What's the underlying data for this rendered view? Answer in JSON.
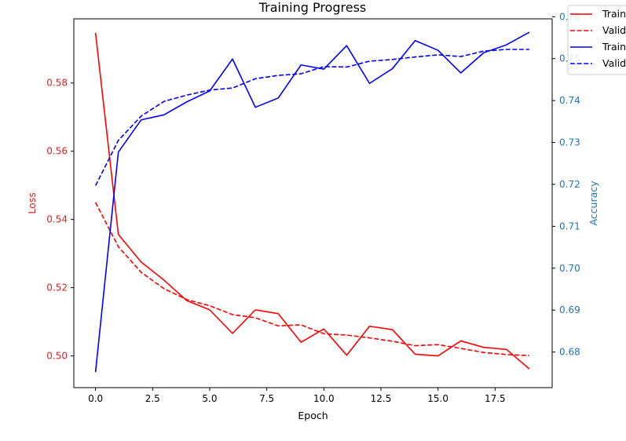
{
  "chart_data": {
    "type": "line",
    "title": "Training Progress",
    "xlabel": "Epoch",
    "ylabel_left": "Loss",
    "ylabel_right": "Accuracy",
    "xlim": [
      -0.95,
      20.0
    ],
    "ylim_left": [
      0.4907,
      0.5988
    ],
    "ylim_right": [
      0.6715,
      0.7595
    ],
    "x_ticks": [
      0.0,
      2.5,
      5.0,
      7.5,
      10.0,
      12.5,
      15.0,
      17.5
    ],
    "y_ticks_left": [
      0.5,
      0.52,
      0.54,
      0.56,
      0.58
    ],
    "y_ticks_right": [
      0.68,
      0.69,
      0.7,
      0.71,
      0.72,
      0.73,
      0.74,
      0.75,
      0.76
    ],
    "x_tick_labels": [
      "0.0",
      "2.5",
      "5.0",
      "7.5",
      "10.0",
      "12.5",
      "15.0",
      "17.5"
    ],
    "y_tick_labels_left": [
      "0.50",
      "0.52",
      "0.54",
      "0.56",
      "0.58"
    ],
    "y_tick_labels_right": [
      "0.68",
      "0.69",
      "0.70",
      "0.71",
      "0.72",
      "0.73",
      "0.74",
      "0.75",
      "0.76"
    ],
    "colors": {
      "loss_axis": "#d62728",
      "accuracy_axis": "#1f77b4",
      "red": "#ff0000",
      "blue": "#0000ff"
    },
    "x": [
      0,
      1,
      2,
      3,
      4,
      5,
      6,
      7,
      8,
      9,
      10,
      11,
      12,
      13,
      14,
      15,
      16,
      17,
      18,
      19
    ],
    "series": [
      {
        "name": "Training Loss",
        "axis": "left",
        "color": "#ff0000",
        "dash": "solid",
        "values": [
          0.5947,
          0.5356,
          0.5275,
          0.5222,
          0.5162,
          0.5135,
          0.5066,
          0.5135,
          0.5124,
          0.504,
          0.5079,
          0.5002,
          0.5087,
          0.5077,
          0.5005,
          0.5,
          0.5044,
          0.5025,
          0.5019,
          0.4962
        ]
      },
      {
        "name": "Validation Loss",
        "axis": "left",
        "color": "#ff0000",
        "dash": "dashed",
        "values": [
          0.545,
          0.532,
          0.5245,
          0.5197,
          0.5165,
          0.5147,
          0.5121,
          0.5112,
          0.5088,
          0.5091,
          0.5065,
          0.5061,
          0.5053,
          0.5043,
          0.503,
          0.5033,
          0.5022,
          0.501,
          0.5004,
          0.5001
        ]
      },
      {
        "name": "Training Accuracy",
        "axis": "right",
        "color": "#0000ff",
        "dash": "solid",
        "values": [
          0.6752,
          0.7277,
          0.7354,
          0.7366,
          0.7397,
          0.7423,
          0.7499,
          0.7384,
          0.7406,
          0.7485,
          0.7475,
          0.7531,
          0.7441,
          0.7476,
          0.7543,
          0.752,
          0.7466,
          0.7514,
          0.7533,
          0.7563
        ]
      },
      {
        "name": "Validation Accuracy",
        "axis": "right",
        "color": "#0000ff",
        "dash": "dashed",
        "values": [
          0.7197,
          0.7305,
          0.7363,
          0.7398,
          0.7413,
          0.7425,
          0.743,
          0.7452,
          0.746,
          0.7464,
          0.7481,
          0.748,
          0.7494,
          0.7498,
          0.7504,
          0.7509,
          0.7505,
          0.7518,
          0.7522,
          0.7522
        ]
      }
    ],
    "legend": {
      "placement": "top-right",
      "labels": [
        "Training Loss",
        "Validation Loss",
        "Training Accuracy",
        "Validation Accuracy"
      ]
    }
  }
}
